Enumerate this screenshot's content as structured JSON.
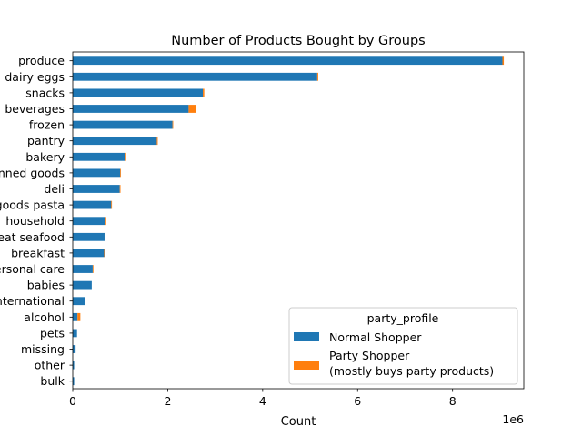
{
  "chart_data": {
    "type": "bar",
    "orientation": "horizontal",
    "stacked": true,
    "title": "Number of Products Bought by Groups",
    "xlabel": "Count",
    "ylabel": "",
    "x_offset_label": "1e6",
    "x_ticks": [
      "0",
      "2",
      "4",
      "6",
      "8"
    ],
    "xlim": [
      0,
      9500000
    ],
    "categories": [
      "produce",
      "dairy eggs",
      "snacks",
      "beverages",
      "frozen",
      "pantry",
      "bakery",
      "canned goods",
      "deli",
      "dry goods pasta",
      "household",
      "meat seafood",
      "breakfast",
      "personal care",
      "babies",
      "international",
      "alcohol",
      "pets",
      "missing",
      "other",
      "bulk"
    ],
    "series": [
      {
        "name": "Normal Shopper",
        "color": "#1f77b4",
        "values": [
          9050000,
          5150000,
          2740000,
          2440000,
          2100000,
          1770000,
          1110000,
          1000000,
          990000,
          810000,
          690000,
          670000,
          660000,
          420000,
          400000,
          250000,
          100000,
          90000,
          60000,
          30000,
          30000
        ]
      },
      {
        "name": "Party Shopper\n(mostly buys party products)",
        "color": "#ff7f0e",
        "values": [
          30000,
          20000,
          30000,
          150000,
          10000,
          20000,
          5000,
          5000,
          5000,
          5000,
          5000,
          5000,
          5000,
          5000,
          0,
          5000,
          60000,
          0,
          0,
          0,
          0
        ]
      }
    ],
    "legend": {
      "title": "party_profile",
      "placement": "lower-right"
    },
    "grid": false
  }
}
